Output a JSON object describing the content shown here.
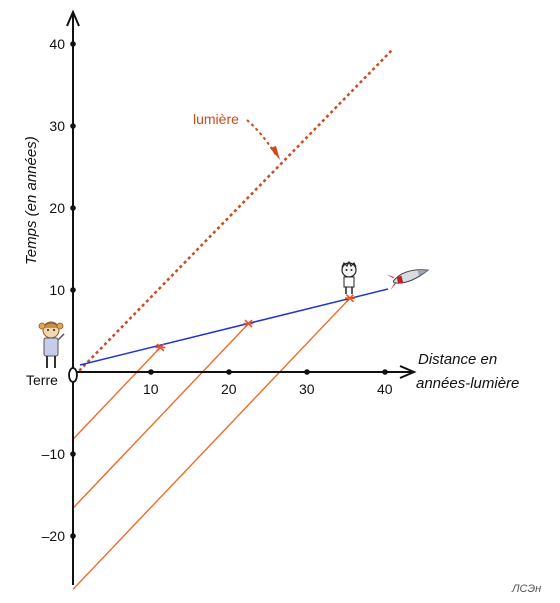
{
  "diagram": {
    "y_axis_label": "Temps (en années)",
    "x_axis_label_line1": "Distance en",
    "x_axis_label_line2": "années-lumière",
    "origin_label": "Terre",
    "light_label": "lumière",
    "signature": "ЛСЭн",
    "x_ticks": [
      {
        "value": 10,
        "label": "10"
      },
      {
        "value": 20,
        "label": "20"
      },
      {
        "value": 30,
        "label": "30"
      },
      {
        "value": 40,
        "label": "40"
      }
    ],
    "y_ticks": [
      {
        "value": 40,
        "label": "40"
      },
      {
        "value": 30,
        "label": "30"
      },
      {
        "value": 20,
        "label": "20"
      },
      {
        "value": 10,
        "label": "10"
      },
      {
        "value": -10,
        "label": "–10"
      },
      {
        "value": -20,
        "label": "–20"
      }
    ],
    "colors": {
      "axis": "#111111",
      "light_line": "#d0491c",
      "worldline": "#2233cc",
      "signal_lines": "#f06a2a",
      "event_marker": "#e8502a"
    }
  }
}
